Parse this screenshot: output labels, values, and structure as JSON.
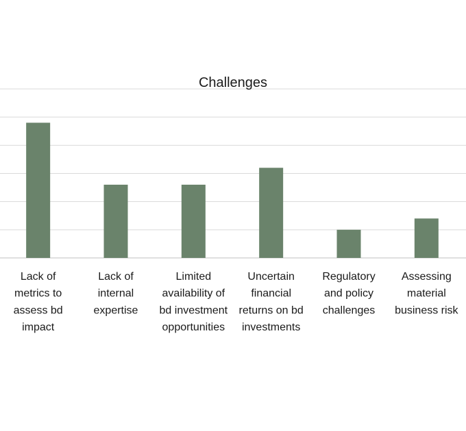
{
  "chart_data": {
    "type": "bar",
    "title": "Challenges",
    "categories": [
      [
        "Lack of",
        "metrics to",
        "assess bd",
        "impact"
      ],
      [
        "Lack of",
        "internal",
        "expertise"
      ],
      [
        "Limited",
        "availability of",
        "bd investment",
        "opportunities"
      ],
      [
        "Uncertain",
        "financial",
        "returns on bd",
        "investments"
      ],
      [
        "Regulatory",
        "and policy",
        "challenges"
      ],
      [
        "Assessing",
        "material",
        "business risk"
      ]
    ],
    "values": [
      4.8,
      2.6,
      2.6,
      3.2,
      1.0,
      1.4
    ],
    "ylim": [
      0,
      6
    ],
    "grid": true,
    "colors": {
      "bar": "#6a836b",
      "grid": "#d9d9d9",
      "axis": "#bfbfbf"
    }
  }
}
